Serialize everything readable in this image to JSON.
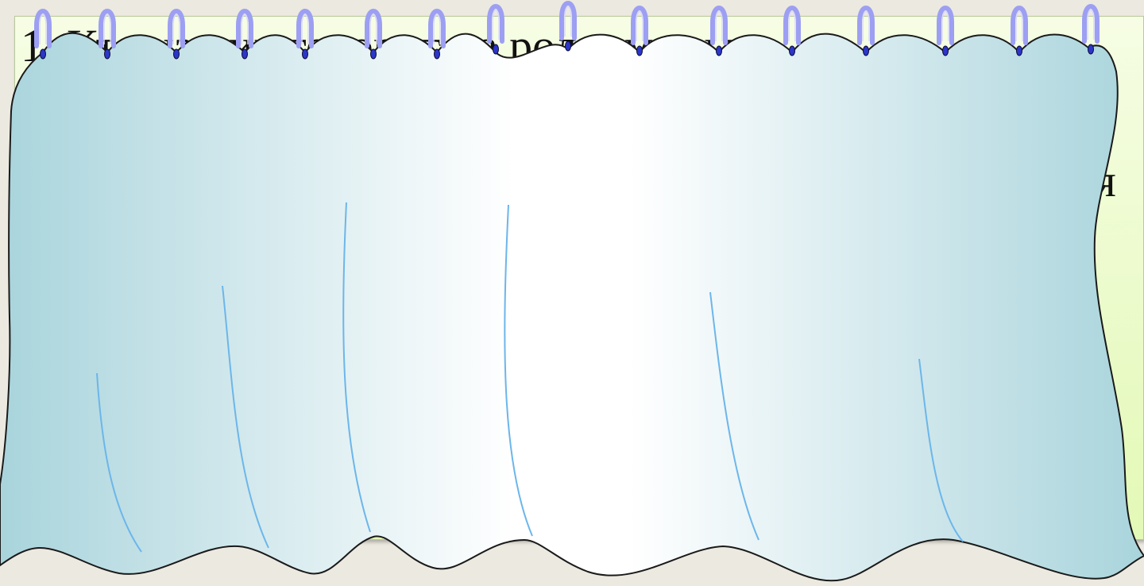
{
  "slide": {
    "line_1": "1.  Кто  из  них  говорит  на  родном  языке",
    "line_2": "я"
  },
  "curtain": {
    "icon": "curtain-icon",
    "ring_icon": "curtain-ring-icon",
    "ring_count": 16,
    "fold_count": 7,
    "colors": {
      "fabric_edge": "#a9d4dc",
      "fabric_center": "#ffffff",
      "fold_line": "#6cb6ea",
      "ring": "#9d9ff3",
      "ring_hole": "#2c36c8",
      "outline": "#1a1a1a"
    }
  }
}
